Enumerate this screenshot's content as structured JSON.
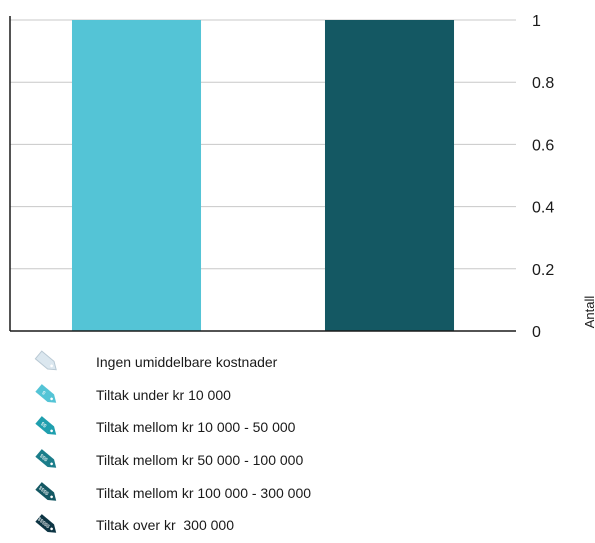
{
  "chart_data": {
    "type": "bar",
    "categories": [
      "",
      ""
    ],
    "series": [
      {
        "values": [
          1,
          1
        ]
      }
    ],
    "bar_colors": [
      "#54c4d6",
      "#145863"
    ],
    "ylabel": "Antall",
    "ylim": [
      0,
      1
    ],
    "yticks": [
      "0",
      "0.2",
      "0.4",
      "0.6",
      "0.8",
      "1"
    ],
    "ytick_values": [
      0,
      0.2,
      0.4,
      0.6,
      0.8,
      1
    ],
    "y_axis_side": "right",
    "grid": true,
    "legend_position": "bottom-left"
  },
  "legend": {
    "items": [
      {
        "label": "Ingen umiddelbare kostnader",
        "icon": "empty-price-tag-icon",
        "color": "#dbe7ef",
        "tag_text": ""
      },
      {
        "label": "Tiltak under kr 10 000",
        "icon": "price-tag-icon",
        "color": "#54c4d6",
        "tag_text": "$"
      },
      {
        "label": "Tiltak mellom kr 10 000 - 50 000",
        "icon": "price-tag-icon",
        "color": "#1f9fae",
        "tag_text": "$$"
      },
      {
        "label": "Tiltak mellom kr 50 000 - 100 000",
        "icon": "price-tag-icon",
        "color": "#1b7d8a",
        "tag_text": "$$$"
      },
      {
        "label": "Tiltak mellom kr 100 000 - 300 000",
        "icon": "price-tag-icon",
        "color": "#145863",
        "tag_text": "$$$$"
      },
      {
        "label": "Tiltak over kr  300 000",
        "icon": "price-tag-icon",
        "color": "#0d3544",
        "tag_text": "$$$$$"
      }
    ]
  }
}
